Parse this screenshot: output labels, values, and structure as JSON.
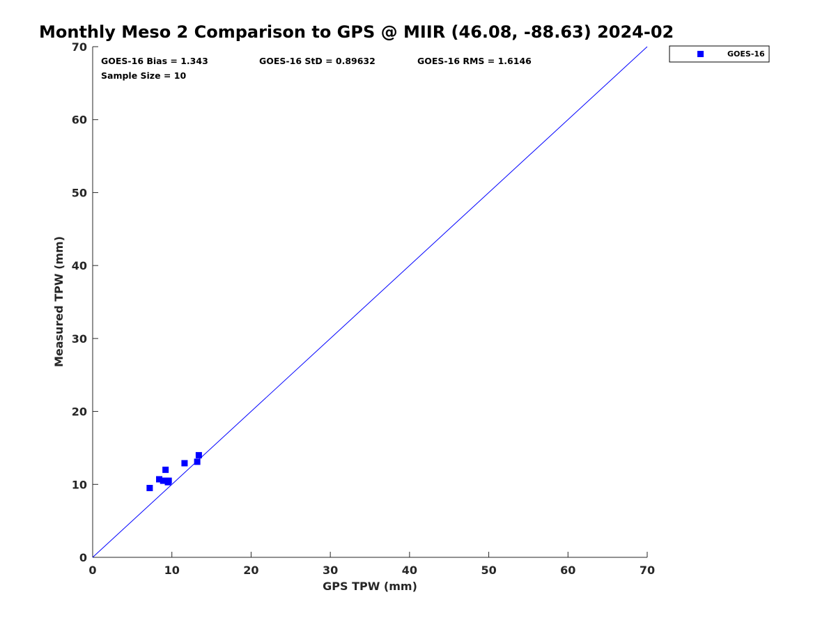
{
  "chart_data": {
    "type": "scatter",
    "title": "Monthly Meso 2 Comparison to GPS @ MIIR (46.08, -88.63) 2024-02",
    "xlabel": "GPS TPW (mm)",
    "ylabel": "Measured TPW (mm)",
    "xlim": [
      0,
      70
    ],
    "ylim": [
      0,
      70
    ],
    "xticks": [
      0,
      10,
      20,
      30,
      40,
      50,
      60,
      70
    ],
    "yticks": [
      0,
      10,
      20,
      30,
      40,
      50,
      60,
      70
    ],
    "grid": false,
    "legend_position": "outside-top-right",
    "reference_line": {
      "label": "1:1",
      "x": [
        0,
        70
      ],
      "y": [
        0,
        70
      ],
      "color": "#0000ff"
    },
    "series": [
      {
        "name": "GOES-16",
        "color": "#0000ff",
        "marker": "square",
        "x": [
          7.2,
          8.4,
          8.9,
          9.2,
          9.3,
          9.5,
          9.6,
          11.6,
          13.2,
          13.4
        ],
        "y": [
          9.5,
          10.7,
          10.5,
          12.0,
          10.5,
          10.3,
          10.5,
          12.9,
          13.1,
          14.0
        ]
      }
    ],
    "stats": {
      "bias": "GOES-16 Bias = 1.343",
      "std": "GOES-16 StD = 0.89632",
      "rms": "GOES-16 RMS = 1.6146",
      "sample_size": "Sample Size = 10"
    }
  }
}
